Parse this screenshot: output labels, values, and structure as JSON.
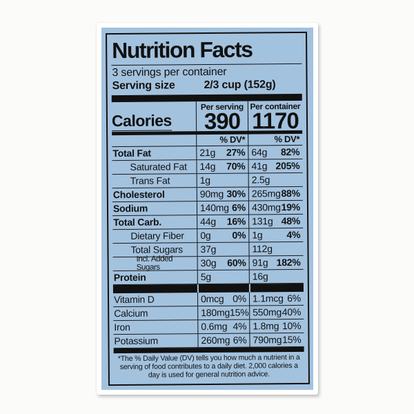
{
  "label": {
    "title": "Nutrition Facts",
    "servings_per_container": "3 servings per container",
    "serving_size_label": "Serving size",
    "serving_size_value": "2/3 cup  (152g)",
    "calories_label": "Calories",
    "per_serving_header": "Per serving",
    "per_container_header": "Per container",
    "calories_per_serving": "390",
    "calories_per_container": "1170",
    "dv_header": "% DV*",
    "rows": [
      {
        "label": "Total Fat",
        "s_amt": "21g",
        "s_dv": "27%",
        "c_amt": "64g",
        "c_dv": "82%"
      },
      {
        "label": "Saturated Fat",
        "s_amt": "14g",
        "s_dv": "70%",
        "c_amt": "41g",
        "c_dv": "205%"
      },
      {
        "label": "Trans Fat",
        "s_amt": "1g",
        "s_dv": "",
        "c_amt": "2.5g",
        "c_dv": ""
      },
      {
        "label": "Cholesterol",
        "s_amt": "90mg",
        "s_dv": "30%",
        "c_amt": "265mg",
        "c_dv": "88%"
      },
      {
        "label": "Sodium",
        "s_amt": "140mg",
        "s_dv": "6%",
        "c_amt": "430mg",
        "c_dv": "19%"
      },
      {
        "label": "Total Carb.",
        "s_amt": "44g",
        "s_dv": "16%",
        "c_amt": "131g",
        "c_dv": "48%"
      },
      {
        "label": "Dietary Fiber",
        "s_amt": "0g",
        "s_dv": "0%",
        "c_amt": "1g",
        "c_dv": "4%"
      },
      {
        "label": "Total Sugars",
        "s_amt": "37g",
        "s_dv": "",
        "c_amt": "112g",
        "c_dv": ""
      },
      {
        "label": "Incl. Added Sugars",
        "s_amt": "30g",
        "s_dv": "60%",
        "c_amt": "91g",
        "c_dv": "182%"
      },
      {
        "label": "Protein",
        "s_amt": "5g",
        "s_dv": "",
        "c_amt": "16g",
        "c_dv": ""
      }
    ],
    "vitamins": [
      {
        "label": "Vitamin D",
        "s_amt": "0mcg",
        "s_dv": "0%",
        "c_amt": "1.1mcg",
        "c_dv": "6%"
      },
      {
        "label": "Calcium",
        "s_amt": "180mg",
        "s_dv": "15%",
        "c_amt": "550mg",
        "c_dv": "40%"
      },
      {
        "label": "Iron",
        "s_amt": "0.6mg",
        "s_dv": "4%",
        "c_amt": "1.8mg",
        "c_dv": "10%"
      },
      {
        "label": "Potassium",
        "s_amt": "260mg",
        "s_dv": "6%",
        "c_amt": "790mg",
        "c_dv": "15%"
      }
    ],
    "footnote": "*The % Daily Value (DV) tells you how much a nutrient in a serving of food contributes to a daily diet. 2,000 calories a day is used for general nutrition advice."
  }
}
